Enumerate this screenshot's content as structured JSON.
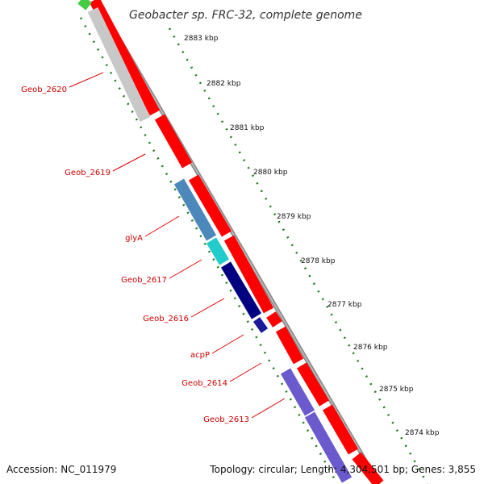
{
  "title": "Geobacter sp. FRC-32, complete genome",
  "footer": {
    "accession": "Accession: NC_011979",
    "topology": "Topology: circular; Length: 4,304,501 bp; Genes: 3,855"
  },
  "colors": {
    "forward_gene": "#ff0000",
    "backbone": "#8c8c8c",
    "tick": "#1b7a1b",
    "label": "#cc0000",
    "leader": "#dd0000"
  },
  "kbp_labels": [
    "2883 kbp",
    "2882 kbp",
    "2881 kbp",
    "2880 kbp",
    "2879 kbp",
    "2878 kbp",
    "2877 kbp",
    "2876 kbp",
    "2875 kbp",
    "2874 kbp"
  ],
  "genes": [
    {
      "label": "Geob_2620"
    },
    {
      "label": "Geob_2619"
    },
    {
      "label": "glyA"
    },
    {
      "label": "Geob_2617"
    },
    {
      "label": "Geob_2616"
    },
    {
      "label": "acpP"
    },
    {
      "label": "Geob_2614"
    },
    {
      "label": "Geob_2613"
    }
  ]
}
